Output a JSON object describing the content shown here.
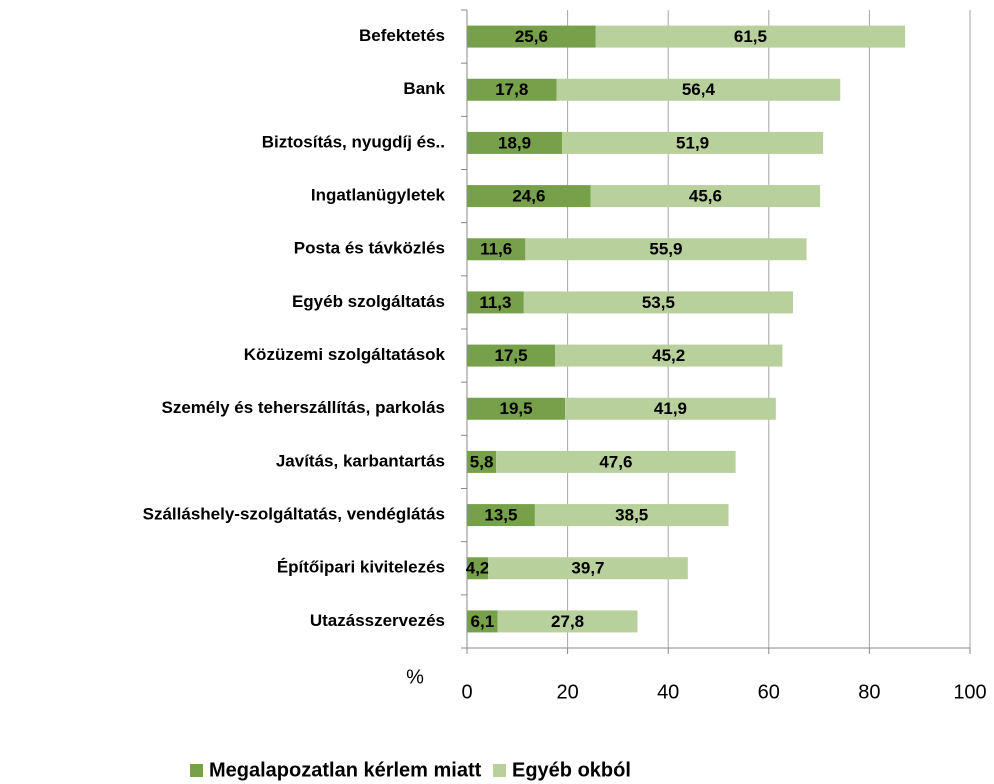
{
  "chart_data": {
    "type": "stacked-barh",
    "categories": [
      "Befektetés",
      "Bank",
      "Biztosítás, nyugdíj és..",
      "Ingatlanügyletek",
      "Posta és távközlés",
      "Egyéb szolgáltatás",
      "Közüzemi szolgáltatások",
      "Személy és teherszállítás, parkolás",
      "Javítás, karbantartás",
      "Szálláshely-szolgáltatás, vendéglátás",
      "Építőipari kivitelezés",
      "Utazásszervezés"
    ],
    "series": [
      {
        "name": "Megalapozatlan kérlem miatt",
        "color": "#77a04a",
        "values": [
          25.6,
          17.8,
          18.9,
          24.6,
          11.6,
          11.3,
          17.5,
          19.5,
          5.8,
          13.5,
          4.2,
          6.1
        ],
        "value_labels": [
          "25,6",
          "17,8",
          "18,9",
          "24,6",
          "11,6",
          "11,3",
          "17,5",
          "19,5",
          "5,8",
          "13,5",
          "4,2",
          "6,1"
        ]
      },
      {
        "name": "Egyéb okból",
        "color": "#b8d09c",
        "values": [
          61.5,
          56.4,
          51.9,
          45.6,
          55.9,
          53.5,
          45.2,
          41.9,
          47.6,
          38.5,
          39.7,
          27.8
        ],
        "value_labels": [
          "61,5",
          "56,4",
          "51,9",
          "45,6",
          "55,9",
          "53,5",
          "45,2",
          "41,9",
          "47,6",
          "38,5",
          "39,7",
          "27,8"
        ]
      }
    ],
    "xlabel": "%",
    "xlim": [
      0,
      100
    ],
    "xticks": [
      0,
      20,
      40,
      60,
      80,
      100
    ],
    "grid": true,
    "legend": "bottom"
  }
}
